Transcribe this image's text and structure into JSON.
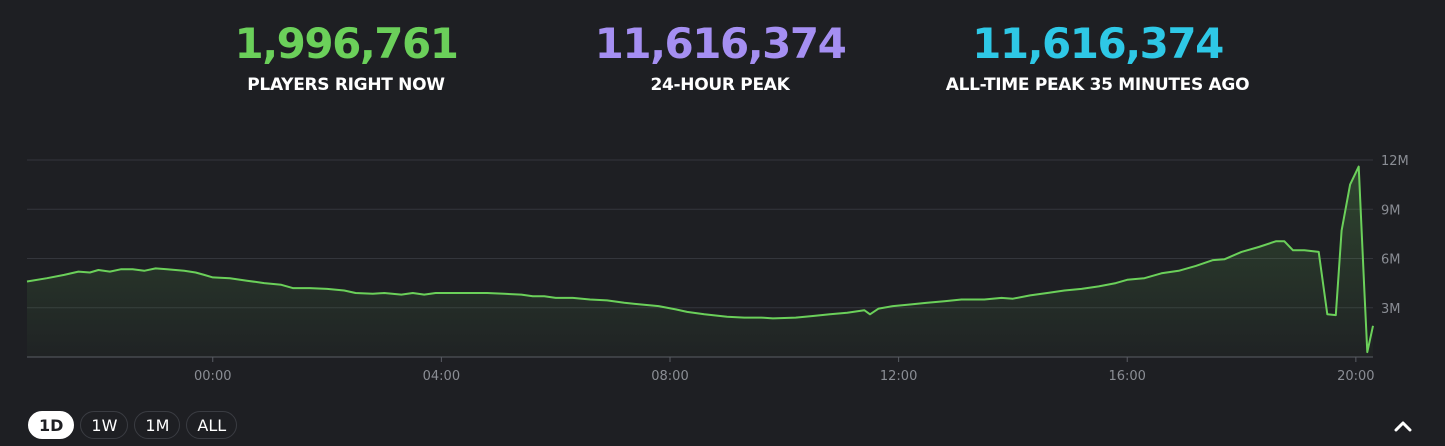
{
  "stats": {
    "players_now": {
      "value": "1,996,761",
      "label": "PLAYERS RIGHT NOW",
      "color": "#6bd05a"
    },
    "peak_24h": {
      "value": "11,616,374",
      "label": "24-HOUR PEAK",
      "color": "#a58ff2"
    },
    "all_time_peak": {
      "value": "11,616,374",
      "label": "ALL-TIME PEAK 35 MINUTES AGO",
      "color": "#2ec8e6"
    }
  },
  "controls": {
    "ranges": [
      "1D",
      "1W",
      "1M",
      "ALL"
    ],
    "active": "1D"
  },
  "chart_data": {
    "type": "area",
    "x_tick_labels": [
      "00:00",
      "04:00",
      "08:00",
      "12:00",
      "16:00",
      "20:00"
    ],
    "y_tick_labels": [
      "12M",
      "9M",
      "6M",
      "3M"
    ],
    "ylim": [
      0,
      12000000
    ],
    "x_unit": "hours since 00:00",
    "xlim": [
      -3.25,
      20.3
    ],
    "grid": true,
    "line_color": "#6bd05a",
    "series": [
      {
        "values": [
          [
            -3.25,
            4.6
          ],
          [
            -2.9,
            4.8
          ],
          [
            -2.6,
            5.0
          ],
          [
            -2.35,
            5.2
          ],
          [
            -2.15,
            5.15
          ],
          [
            -2.0,
            5.3
          ],
          [
            -1.8,
            5.2
          ],
          [
            -1.6,
            5.35
          ],
          [
            -1.4,
            5.35
          ],
          [
            -1.2,
            5.25
          ],
          [
            -1.0,
            5.4
          ],
          [
            -0.8,
            5.35
          ],
          [
            -0.5,
            5.25
          ],
          [
            -0.3,
            5.15
          ],
          [
            -0.15,
            5.0
          ],
          [
            0.0,
            4.85
          ],
          [
            0.3,
            4.8
          ],
          [
            0.6,
            4.65
          ],
          [
            0.9,
            4.5
          ],
          [
            1.2,
            4.4
          ],
          [
            1.4,
            4.2
          ],
          [
            1.7,
            4.2
          ],
          [
            2.0,
            4.15
          ],
          [
            2.3,
            4.05
          ],
          [
            2.5,
            3.9
          ],
          [
            2.8,
            3.85
          ],
          [
            3.0,
            3.9
          ],
          [
            3.3,
            3.8
          ],
          [
            3.5,
            3.9
          ],
          [
            3.7,
            3.8
          ],
          [
            3.9,
            3.9
          ],
          [
            4.2,
            3.9
          ],
          [
            4.5,
            3.9
          ],
          [
            4.8,
            3.9
          ],
          [
            5.1,
            3.85
          ],
          [
            5.4,
            3.8
          ],
          [
            5.6,
            3.7
          ],
          [
            5.8,
            3.7
          ],
          [
            6.0,
            3.6
          ],
          [
            6.3,
            3.6
          ],
          [
            6.6,
            3.5
          ],
          [
            6.9,
            3.45
          ],
          [
            7.2,
            3.3
          ],
          [
            7.5,
            3.2
          ],
          [
            7.8,
            3.1
          ],
          [
            8.1,
            2.9
          ],
          [
            8.3,
            2.75
          ],
          [
            8.6,
            2.6
          ],
          [
            9.0,
            2.45
          ],
          [
            9.3,
            2.4
          ],
          [
            9.6,
            2.4
          ],
          [
            9.8,
            2.35
          ],
          [
            10.2,
            2.4
          ],
          [
            10.5,
            2.5
          ],
          [
            10.8,
            2.6
          ],
          [
            11.1,
            2.7
          ],
          [
            11.4,
            2.85
          ],
          [
            11.5,
            2.6
          ],
          [
            11.65,
            2.95
          ],
          [
            11.9,
            3.1
          ],
          [
            12.2,
            3.2
          ],
          [
            12.5,
            3.3
          ],
          [
            12.8,
            3.4
          ],
          [
            13.1,
            3.5
          ],
          [
            13.5,
            3.5
          ],
          [
            13.8,
            3.6
          ],
          [
            14.0,
            3.55
          ],
          [
            14.3,
            3.75
          ],
          [
            14.6,
            3.9
          ],
          [
            14.9,
            4.05
          ],
          [
            15.2,
            4.15
          ],
          [
            15.5,
            4.3
          ],
          [
            15.8,
            4.5
          ],
          [
            16.0,
            4.7
          ],
          [
            16.3,
            4.8
          ],
          [
            16.6,
            5.1
          ],
          [
            16.9,
            5.25
          ],
          [
            17.2,
            5.55
          ],
          [
            17.5,
            5.9
          ],
          [
            17.7,
            5.95
          ],
          [
            18.0,
            6.4
          ],
          [
            18.3,
            6.7
          ],
          [
            18.6,
            7.05
          ],
          [
            18.75,
            7.05
          ],
          [
            18.9,
            6.5
          ],
          [
            19.1,
            6.5
          ],
          [
            19.35,
            6.4
          ],
          [
            19.5,
            2.6
          ],
          [
            19.65,
            2.55
          ],
          [
            19.75,
            7.7
          ],
          [
            19.9,
            10.5
          ],
          [
            20.05,
            11.6
          ],
          [
            20.15,
            4.0
          ],
          [
            20.2,
            0.3
          ],
          [
            20.3,
            1.9
          ]
        ]
      }
    ]
  }
}
